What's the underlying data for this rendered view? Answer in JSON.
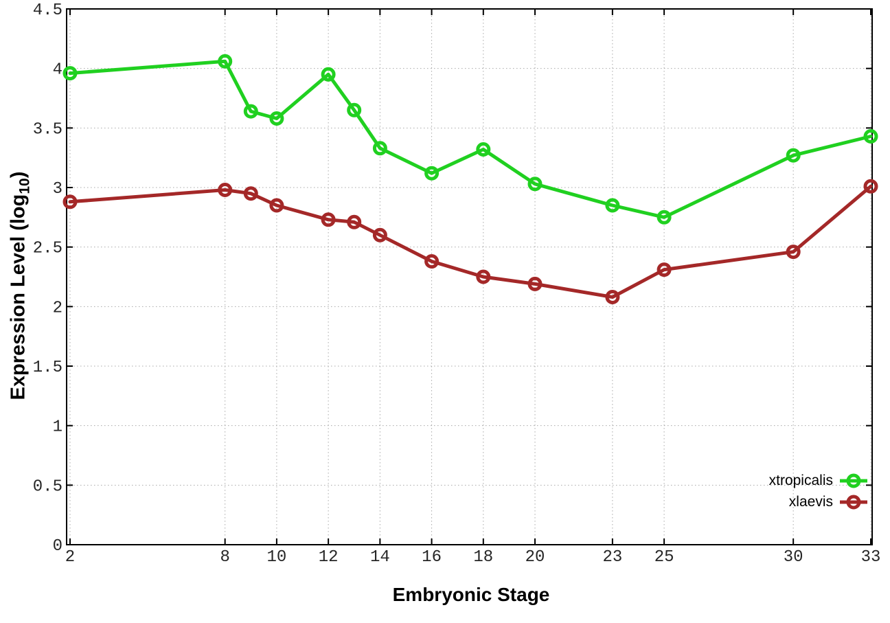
{
  "chart_data": {
    "type": "line",
    "title": "",
    "xlabel": "Embryonic Stage",
    "ylabel": "Expression Level (log10)",
    "xlim": [
      2,
      33
    ],
    "ylim": [
      0,
      4.5
    ],
    "grid": "dotted",
    "legend_position": "bottom-right-inside",
    "marker": "open-circle",
    "x": [
      2,
      8,
      9,
      10,
      12,
      13,
      14,
      16,
      18,
      20,
      23,
      25,
      30,
      33
    ],
    "xtick_values": [
      2,
      8,
      10,
      12,
      14,
      16,
      18,
      20,
      23,
      25,
      30,
      33
    ],
    "xtick_labels": [
      "2",
      "8",
      "10",
      "12",
      "14",
      "16",
      "18",
      "20",
      "23",
      "25",
      "30",
      "33"
    ],
    "ytick_values": [
      0,
      0.5,
      1,
      1.5,
      2,
      2.5,
      3,
      3.5,
      4,
      4.5
    ],
    "ytick_labels": [
      "0",
      "0.5",
      "1",
      "1.5",
      "2",
      "2.5",
      "3",
      "3.5",
      "4",
      "4.5"
    ],
    "series": [
      {
        "name": "xtropicalis",
        "color": "#20d020",
        "values": [
          3.96,
          4.06,
          3.64,
          3.58,
          3.95,
          3.65,
          3.33,
          3.12,
          3.32,
          3.03,
          2.85,
          2.75,
          3.27,
          3.43
        ]
      },
      {
        "name": "xlaevis",
        "color": "#a42828",
        "values": [
          2.88,
          2.98,
          2.95,
          2.85,
          2.73,
          2.71,
          2.6,
          2.38,
          2.25,
          2.19,
          2.08,
          2.31,
          2.46,
          3.01
        ]
      }
    ]
  },
  "labels": {
    "ylabel_prefix": "Expression Level (log",
    "ylabel_sub": "10",
    "ylabel_suffix": ")"
  },
  "colors": {
    "background": "#ffffff",
    "axis": "#000000",
    "grid": "#a8a8a8",
    "tick_text": "#262626"
  }
}
